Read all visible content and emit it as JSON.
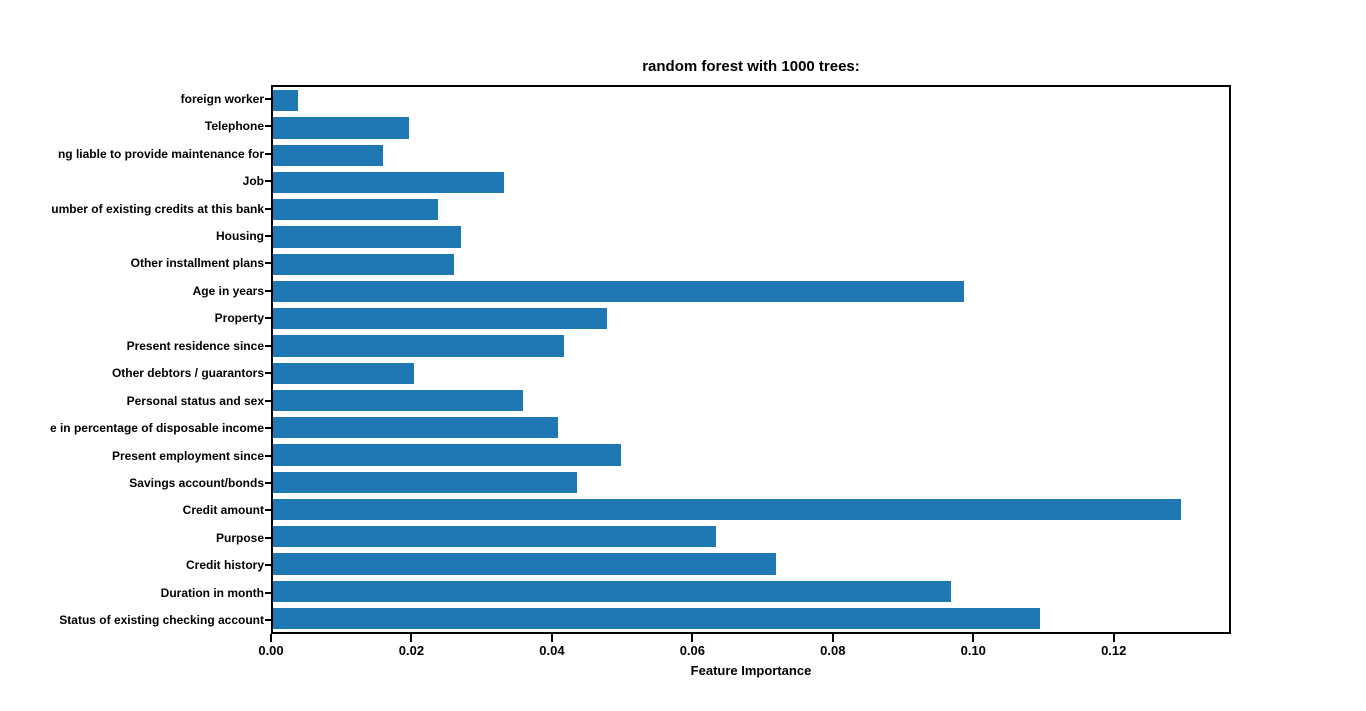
{
  "chart": {
    "title": "random forest with 1000 trees:",
    "xlabel": "Feature Importance"
  },
  "chart_data": {
    "type": "bar",
    "orientation": "horizontal",
    "title": "random forest with 1000 trees:",
    "xlabel": "Feature Importance",
    "ylabel": "",
    "categories": [
      "foreign worker",
      "Telephone",
      "ng liable to provide maintenance for",
      "Job",
      "umber of existing credits at this bank",
      "Housing",
      "Other installment plans",
      "Age in years",
      "Property",
      "Present residence since",
      "Other debtors / guarantors",
      "Personal status and sex",
      "e in percentage of disposable income",
      "Present employment since",
      "Savings account/bonds",
      "Credit amount",
      "Purpose",
      "Credit history",
      "Duration in month",
      "Status of existing checking account"
    ],
    "values": [
      0.0036,
      0.0195,
      0.0157,
      0.0331,
      0.0236,
      0.0269,
      0.0259,
      0.0988,
      0.0478,
      0.0416,
      0.0201,
      0.0357,
      0.0407,
      0.0498,
      0.0435,
      0.1298,
      0.0633,
      0.0719,
      0.0969,
      0.1097
    ],
    "xlim": [
      0,
      0.1367
    ],
    "xticks": {
      "labels": [
        "0.00",
        "0.02",
        "0.04",
        "0.06",
        "0.08",
        "0.10",
        "0.12"
      ],
      "values": [
        0.0,
        0.02,
        0.04,
        0.06,
        0.08,
        0.1,
        0.12
      ]
    },
    "bar_color": "#1f77b4",
    "grid": false,
    "legend_visible": false
  }
}
